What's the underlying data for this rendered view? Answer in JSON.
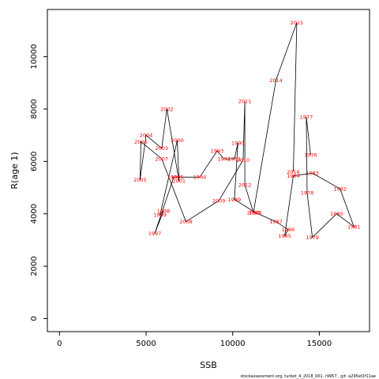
{
  "chart_data": {
    "type": "line",
    "title": "",
    "xlabel": "SSB",
    "ylabel": "R(age 1)",
    "xlim": [
      -700,
      17900
    ],
    "ylim": [
      -500,
      11800
    ],
    "x_ticks": [
      0,
      5000,
      10000,
      15000
    ],
    "y_ticks": [
      0,
      2000,
      4000,
      6000,
      8000,
      10000
    ],
    "grid": false,
    "line_color": "#000000",
    "label_color": "#ff0000",
    "points": [
      {
        "label": "1977",
        "x": 14250,
        "y": 7700
      },
      {
        "label": "1976",
        "x": 14500,
        "y": 6250
      },
      {
        "label": "1978",
        "x": 14300,
        "y": 4800
      },
      {
        "label": "1979",
        "x": 14600,
        "y": 3100
      },
      {
        "label": "1980",
        "x": 16000,
        "y": 4000
      },
      {
        "label": "1981",
        "x": 17000,
        "y": 3500
      },
      {
        "label": "1982",
        "x": 16200,
        "y": 4950
      },
      {
        "label": "1983",
        "x": 14600,
        "y": 5550
      },
      {
        "label": "1984",
        "x": 13500,
        "y": 5450
      },
      {
        "label": "1985",
        "x": 13000,
        "y": 3150
      },
      {
        "label": "1986",
        "x": 13200,
        "y": 3400
      },
      {
        "label": "1987",
        "x": 12500,
        "y": 3700
      },
      {
        "label": "1988",
        "x": 11300,
        "y": 4050
      },
      {
        "label": "1989",
        "x": 10100,
        "y": 4550
      },
      {
        "label": "1990",
        "x": 10300,
        "y": 6700
      },
      {
        "label": "1991",
        "x": 10100,
        "y": 6100
      },
      {
        "label": "1992",
        "x": 9500,
        "y": 6100
      },
      {
        "label": "1993",
        "x": 9100,
        "y": 6400
      },
      {
        "label": "1994",
        "x": 8100,
        "y": 5400
      },
      {
        "label": "1995",
        "x": 6800,
        "y": 5400
      },
      {
        "label": "1996",
        "x": 6600,
        "y": 5400
      },
      {
        "label": "1997",
        "x": 5500,
        "y": 3250
      },
      {
        "label": "1998",
        "x": 6000,
        "y": 4100
      },
      {
        "label": "1999",
        "x": 5800,
        "y": 3950
      },
      {
        "label": "2000",
        "x": 6800,
        "y": 6800
      },
      {
        "label": "2001",
        "x": 6900,
        "y": 5250
      },
      {
        "label": "2002",
        "x": 6200,
        "y": 8000
      },
      {
        "label": "2003",
        "x": 5900,
        "y": 6500
      },
      {
        "label": "2004",
        "x": 5000,
        "y": 7000
      },
      {
        "label": "2005",
        "x": 4650,
        "y": 5300
      },
      {
        "label": "2006",
        "x": 4700,
        "y": 6750
      },
      {
        "label": "2007",
        "x": 5900,
        "y": 6100
      },
      {
        "label": "2008",
        "x": 7300,
        "y": 3700
      },
      {
        "label": "2009",
        "x": 9200,
        "y": 4500
      },
      {
        "label": "2010",
        "x": 10600,
        "y": 6050
      },
      {
        "label": "2011",
        "x": 10700,
        "y": 8300
      },
      {
        "label": "2012",
        "x": 10700,
        "y": 5100
      },
      {
        "label": "2013",
        "x": 11200,
        "y": 4050
      },
      {
        "label": "2014",
        "x": 12500,
        "y": 9100
      },
      {
        "label": "2015",
        "x": 13700,
        "y": 11300
      },
      {
        "label": "2016",
        "x": 13500,
        "y": 5600
      }
    ]
  },
  "footer_text": "stockassessment.org, turbot_4_2018_001, r9957 , git: a295ef2f11ae"
}
